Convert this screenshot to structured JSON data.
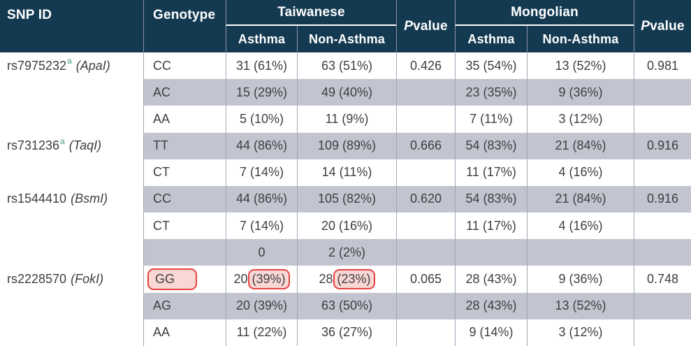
{
  "colors": {
    "header_bg": "#143a52",
    "header_text": "#ffffff",
    "shaded_row_bg": "#c2c5d0",
    "body_text": "#3e3e40",
    "column_divider": "#a2a7b5",
    "superscript_green": "#44a077",
    "annotation_stroke": "#e6413f",
    "annotation_fill": "#f8d7d5"
  },
  "header": {
    "snp_id": "SNP ID",
    "genotype": "Genotype",
    "taiwanese": "Taiwanese",
    "mongolian": "Mongolian",
    "asthma_tw": "Asthma",
    "non_asthma_tw": "Non-Asthma",
    "asthma_mn": "Asthma",
    "non_asthma_mn": "Non-Asthma",
    "p_italic": "P",
    "p_rest": " value"
  },
  "rows": [
    {
      "snp": "rs7975232",
      "snp_sup": "a",
      "gene": "(ApaI)",
      "genotype": "CC",
      "tw_asthma": "31 (61%)",
      "tw_non_asthma": "63 (51%)",
      "p_tw": "0.426",
      "mn_asthma": "35 (54%)",
      "mn_non_asthma": "13 (52%)",
      "p_mn": "0.981",
      "shaded": false
    },
    {
      "genotype": "AC",
      "tw_asthma": "15 (29%)",
      "tw_non_asthma": "49 (40%)",
      "mn_asthma": "23 (35%)",
      "mn_non_asthma": "9 (36%)",
      "shaded": true
    },
    {
      "genotype": "AA",
      "tw_asthma": "5 (10%)",
      "tw_non_asthma": "11 (9%)",
      "mn_asthma": "7 (11%)",
      "mn_non_asthma": "3 (12%)",
      "shaded": false
    },
    {
      "snp": "rs731236",
      "snp_sup": "a",
      "gene": "(TaqI)",
      "genotype": "TT",
      "tw_asthma": "44 (86%)",
      "tw_non_asthma": "109 (89%)",
      "p_tw": "0.666",
      "mn_asthma": "54 (83%)",
      "mn_non_asthma": "21 (84%)",
      "p_mn": "0.916",
      "shaded": true
    },
    {
      "genotype": "CT",
      "tw_asthma": "7 (14%)",
      "tw_non_asthma": "14 (11%)",
      "mn_asthma": "11 (17%)",
      "mn_non_asthma": "4 (16%)",
      "shaded": false
    },
    {
      "snp": "rs1544410",
      "gene": "(BsmI)",
      "genotype": "CC",
      "tw_asthma": "44 (86%)",
      "tw_non_asthma": "105 (82%)",
      "p_tw": "0.620",
      "mn_asthma": "54 (83%)",
      "mn_non_asthma": "21 (84%)",
      "p_mn": "0.916",
      "shaded": true
    },
    {
      "genotype": "CT",
      "tw_asthma": "7 (14%)",
      "tw_non_asthma": "20 (16%)",
      "mn_asthma": "11 (17%)",
      "mn_non_asthma": "4 (16%)",
      "shaded": false
    },
    {
      "genotype": "",
      "tw_asthma": "0",
      "tw_non_asthma": "2 (2%)",
      "shaded": true
    },
    {
      "snp": "rs2228570",
      "gene": "(FokI)",
      "genotype": "GG",
      "genotype_highlighted": true,
      "tw_asthma_pre": "20 ",
      "tw_asthma_hl": "(39%)",
      "tw_non_asthma_pre": "28 ",
      "tw_non_asthma_hl": "(23%)",
      "p_tw": "0.065",
      "mn_asthma": "28 (43%)",
      "mn_non_asthma": "9 (36%)",
      "p_mn": "0.748",
      "shaded": false
    },
    {
      "genotype": "AG",
      "tw_asthma": "20 (39%)",
      "tw_non_asthma": "63 (50%)",
      "mn_asthma": "28 (43%)",
      "mn_non_asthma": "13 (52%)",
      "shaded": true
    },
    {
      "genotype": "AA",
      "tw_asthma": "11 (22%)",
      "tw_non_asthma": "36 (27%)",
      "mn_asthma": "9 (14%)",
      "mn_non_asthma": "3 (12%)",
      "shaded": false
    }
  ]
}
